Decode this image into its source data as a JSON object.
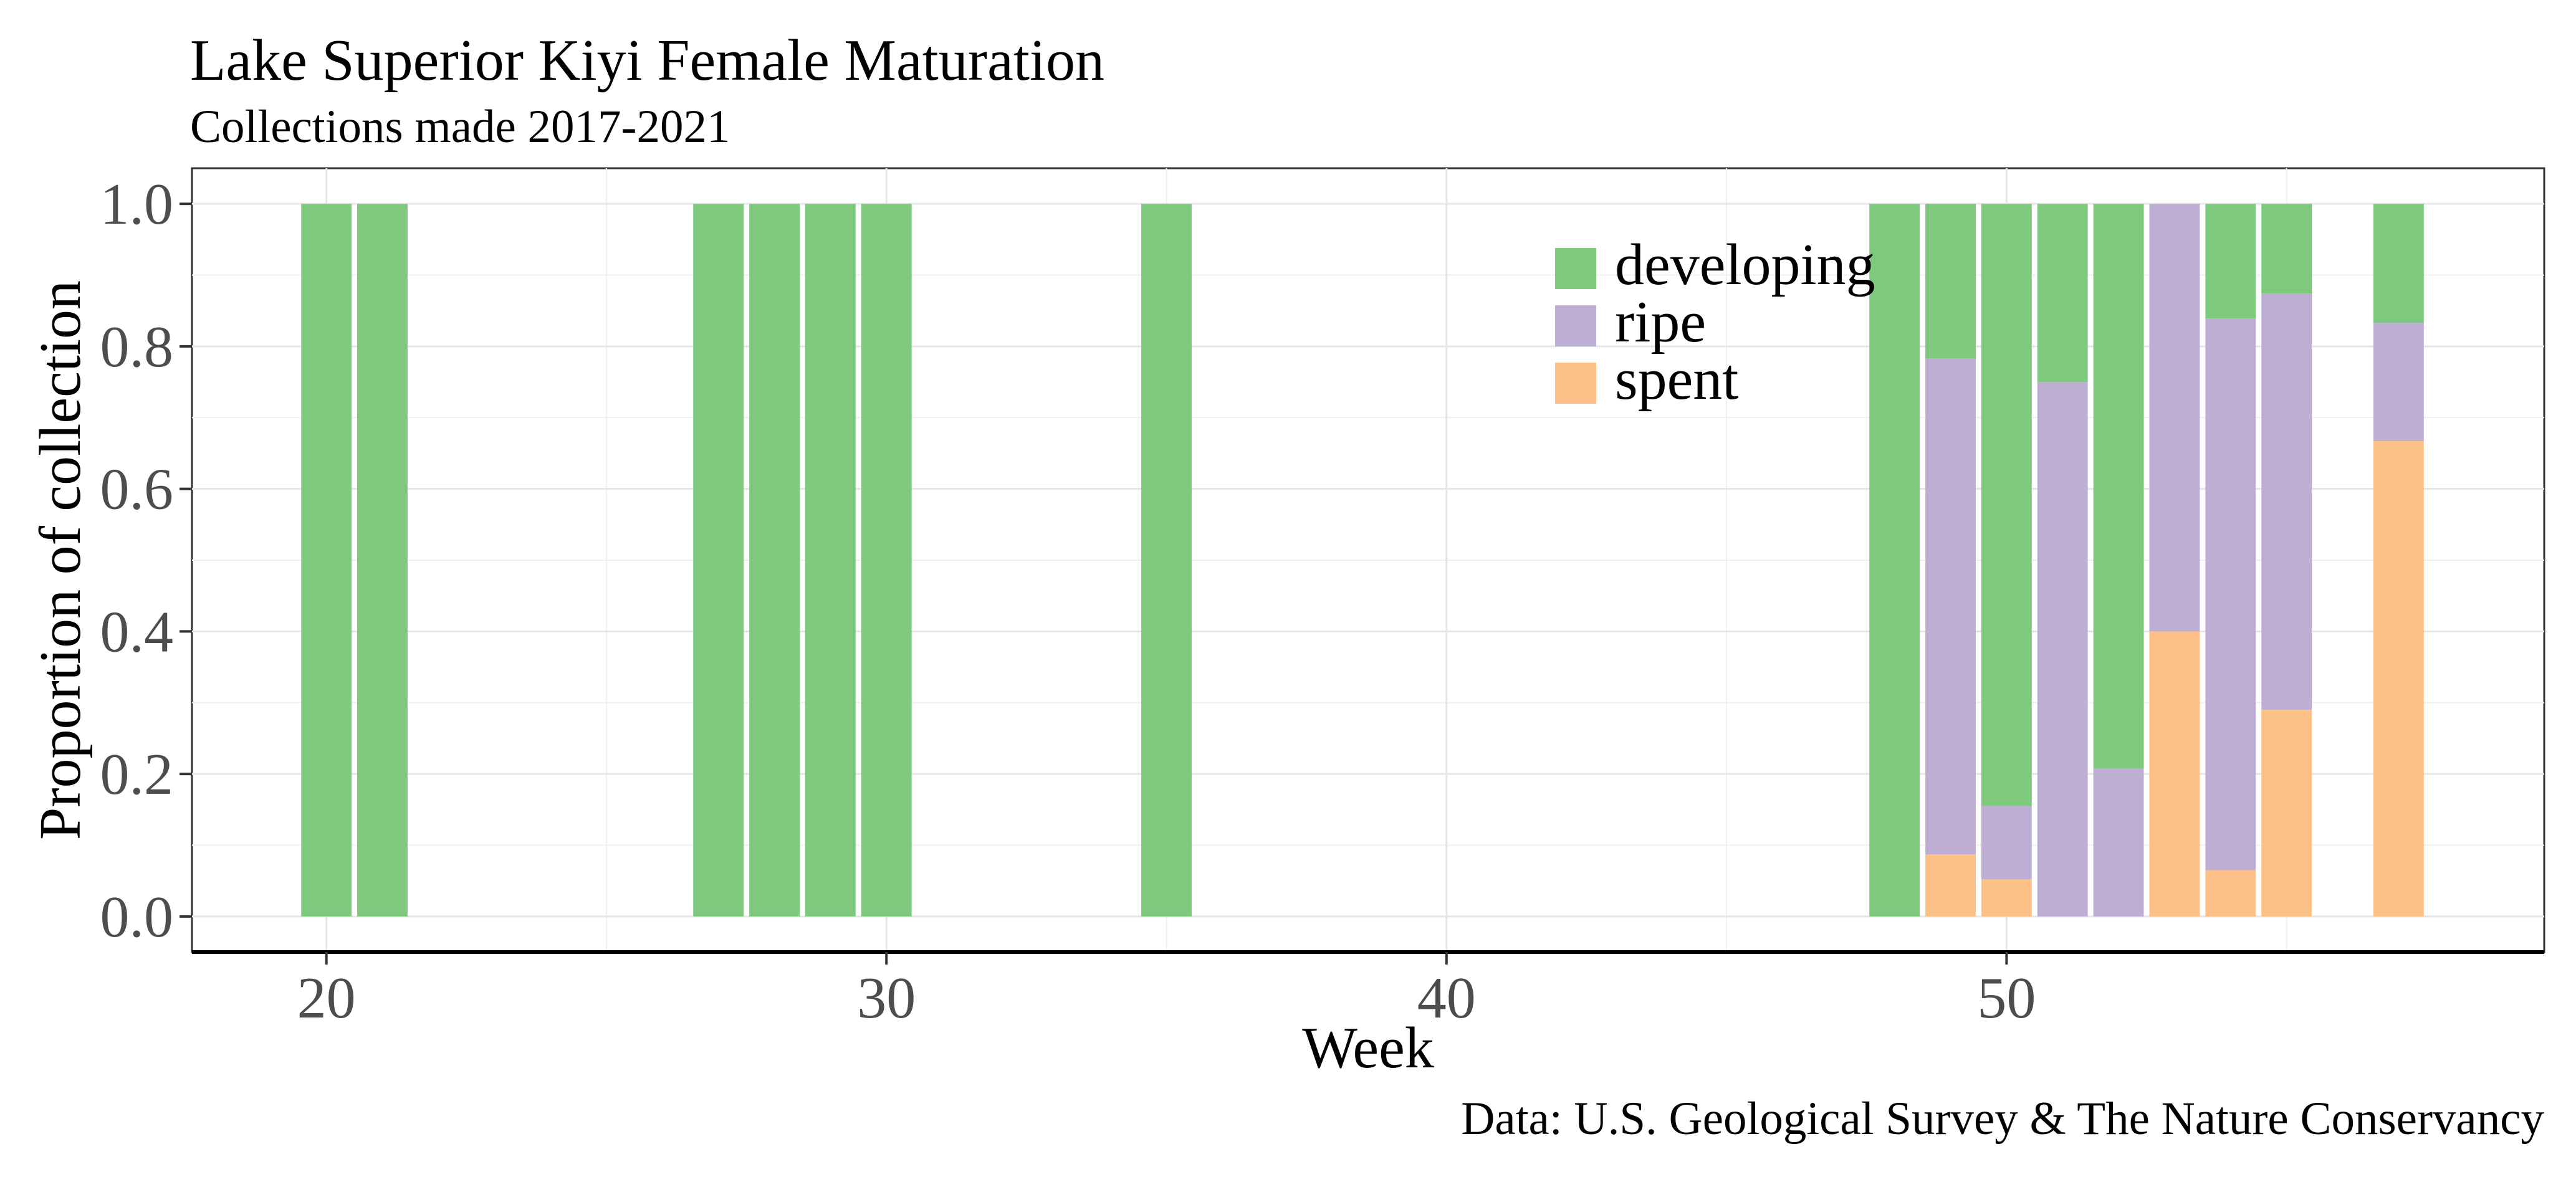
{
  "chart_data": {
    "type": "bar",
    "stacked": true,
    "title": "Lake Superior Kiyi Female Maturation",
    "subtitle": "Collections made 2017-2021",
    "xlabel": "Week",
    "ylabel": "Proportion of collection",
    "caption": "Data: U.S. Geological Survey & The Nature Conservancy",
    "xlim": [
      17.6,
      59.6
    ],
    "ylim": [
      -0.05,
      1.05
    ],
    "x_ticks": [
      20,
      30,
      40,
      50
    ],
    "y_ticks": [
      0.0,
      0.2,
      0.4,
      0.6,
      0.8,
      1.0
    ],
    "y_tick_labels": [
      "0.0",
      "0.2",
      "0.4",
      "0.6",
      "0.8",
      "1.0"
    ],
    "grid": true,
    "legend": {
      "placement": "inside-top-center-right"
    },
    "x": [
      20,
      21,
      27,
      28,
      29,
      30,
      35,
      48,
      49,
      50,
      51,
      52,
      53,
      54,
      55,
      57
    ],
    "series": [
      {
        "name": "spent",
        "color": "#fdc086",
        "values": [
          0,
          0,
          0,
          0,
          0,
          0,
          0,
          0,
          0.087,
          0.052,
          0,
          0,
          0.4,
          0.065,
          0.29,
          0.667
        ]
      },
      {
        "name": "ripe",
        "color": "#beaed4",
        "values": [
          0,
          0,
          0,
          0,
          0,
          0,
          0,
          0,
          0.696,
          0.103,
          0.75,
          0.208,
          0.6,
          0.774,
          0.584,
          0.166
        ]
      },
      {
        "name": "developing",
        "color": "#7fc97f",
        "values": [
          1,
          1,
          1,
          1,
          1,
          1,
          1,
          1,
          0.217,
          0.845,
          0.25,
          0.792,
          0,
          0.161,
          0.126,
          0.167
        ]
      }
    ],
    "legend_order": [
      "developing",
      "ripe",
      "spent"
    ]
  }
}
